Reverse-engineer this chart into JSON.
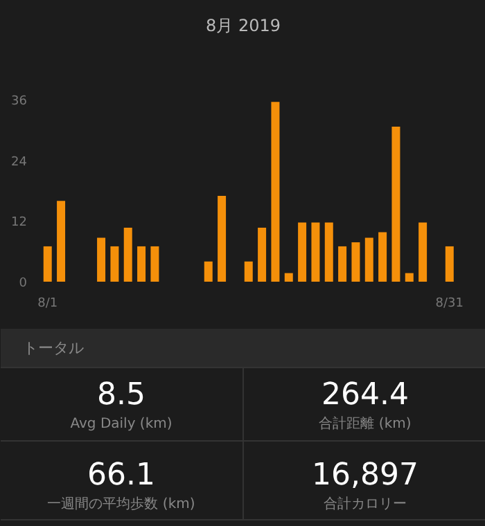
{
  "chart_data": [
    {
      "type": "bar",
      "title": "8月 2019",
      "categories": [
        "8/1",
        null,
        null,
        null,
        null,
        null,
        null,
        null,
        null,
        null,
        null,
        null,
        null,
        null,
        null,
        null,
        null,
        null,
        null,
        null,
        null,
        null,
        null,
        null,
        null,
        null,
        null,
        null,
        null,
        null,
        "8/31"
      ],
      "values": [
        7,
        16,
        null,
        null,
        8.7,
        7,
        10.7,
        7,
        7,
        null,
        null,
        null,
        4,
        17,
        null,
        4,
        10.7,
        35.6,
        1.7,
        11.7,
        11.7,
        11.7,
        7,
        7.8,
        8.7,
        9.8,
        30.7,
        1.7,
        11.7,
        null,
        7
      ],
      "color": "#f5900a",
      "ylim": [
        0,
        37
      ],
      "yticks": [
        0,
        12,
        24,
        36
      ],
      "grid": false
    },
    {
      "type": "other",
      "title": "トータル",
      "annotations": [
        "8.5",
        "Avg Daily (km)",
        "264.4",
        "合計距離 (km)",
        "66.1",
        "一週間の平均歩数 (km)",
        "16,897",
        "合計カロリー"
      ]
    }
  ]
}
